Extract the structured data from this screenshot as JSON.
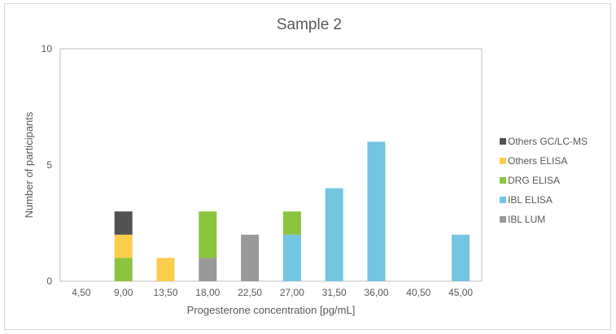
{
  "chart_data": {
    "type": "bar",
    "stacked": true,
    "title": "Sample 2",
    "xlabel": "Progesterone concentration [pg/mL]",
    "ylabel": "Number of participants",
    "ylim": [
      0,
      10
    ],
    "yticks": [
      "0",
      "5",
      "10"
    ],
    "categories": [
      "4,50",
      "9,00",
      "13,50",
      "18,00",
      "22,50",
      "27,00",
      "31,50",
      "36,00",
      "40,50",
      "45,00"
    ],
    "series": [
      {
        "name": "IBL LUM",
        "color": "#999999",
        "values": [
          0,
          0,
          0,
          1,
          2,
          0,
          0,
          0,
          0,
          0
        ]
      },
      {
        "name": "IBL ELISA",
        "color": "#73c5e1",
        "values": [
          0,
          0,
          0,
          0,
          0,
          2,
          4,
          6,
          0,
          2
        ]
      },
      {
        "name": "DRG ELISA",
        "color": "#8bc43f",
        "values": [
          0,
          1,
          0,
          2,
          0,
          1,
          0,
          0,
          0,
          0
        ]
      },
      {
        "name": "Others ELISA",
        "color": "#fbcd4b",
        "values": [
          0,
          1,
          1,
          0,
          0,
          0,
          0,
          0,
          0,
          0
        ]
      },
      {
        "name": "Others GC/LC-MS",
        "color": "#525252",
        "values": [
          0,
          1,
          0,
          0,
          0,
          0,
          0,
          0,
          0,
          0
        ]
      }
    ],
    "legend_position": "right",
    "legend_order": [
      "Others GC/LC-MS",
      "Others ELISA",
      "DRG ELISA",
      "IBL ELISA",
      "IBL LUM"
    ],
    "grid": false
  }
}
